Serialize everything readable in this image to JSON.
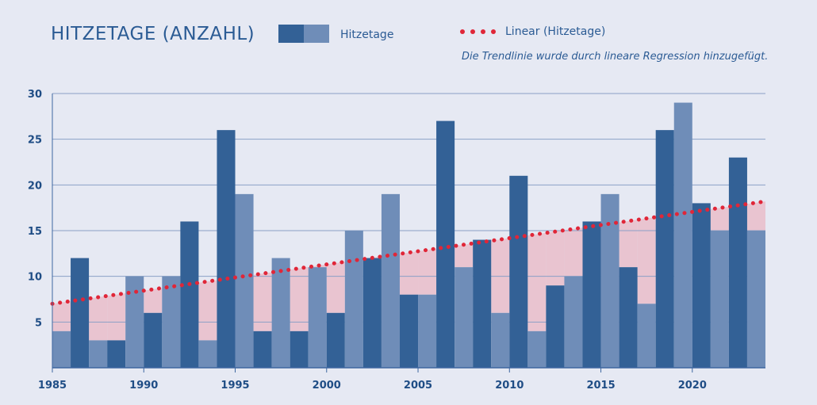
{
  "chart_data": {
    "type": "bar",
    "title": "HITZETAGE (ANZAHL)",
    "series": [
      {
        "name": "Hitzetage",
        "x": [
          1985,
          1986,
          1987,
          1988,
          1989,
          1990,
          1991,
          1992,
          1993,
          1994,
          1995,
          1996,
          1997,
          1998,
          1999,
          2000,
          2001,
          2002,
          2003,
          2004,
          2005,
          2006,
          2007,
          2008,
          2009,
          2010,
          2011,
          2012,
          2013,
          2014,
          2015,
          2016,
          2017,
          2018,
          2019,
          2020,
          2021,
          2022,
          2023
        ],
        "values": [
          4,
          12,
          3,
          3,
          10,
          6,
          10,
          16,
          3,
          26,
          19,
          4,
          12,
          4,
          11,
          6,
          15,
          12,
          19,
          8,
          8,
          27,
          11,
          14,
          6,
          21,
          4,
          9,
          10,
          16,
          19,
          11,
          7,
          26,
          29,
          18,
          15,
          23,
          15
        ]
      }
    ],
    "trendline": {
      "name": "Linear (Hitzetage)",
      "start": {
        "x": 1984.5,
        "y": 7.0
      },
      "end": {
        "x": 2023.5,
        "y": 18.2
      }
    },
    "ylim": [
      0,
      30
    ],
    "yticks": [
      5,
      10,
      15,
      20,
      25,
      30
    ],
    "xticks": [
      1985,
      1990,
      1995,
      2000,
      2005,
      2010,
      2015,
      2020
    ],
    "xlim": [
      1984.5,
      2023.5
    ],
    "grid": true,
    "legend": {
      "bar_label": "Hitzetage",
      "line_label": "Linear (Hitzetage)",
      "note": "Die Trendlinie wurde durch lineare Regression hinzugefügt."
    },
    "colors": {
      "bar_dark": "#336196",
      "bar_light": "#6f8db8",
      "trend": "#e02638",
      "fill": "#e9c4d0",
      "grid": "#8aa0c6",
      "axis": "#3e67a0",
      "background": "#e6e9f3"
    }
  }
}
